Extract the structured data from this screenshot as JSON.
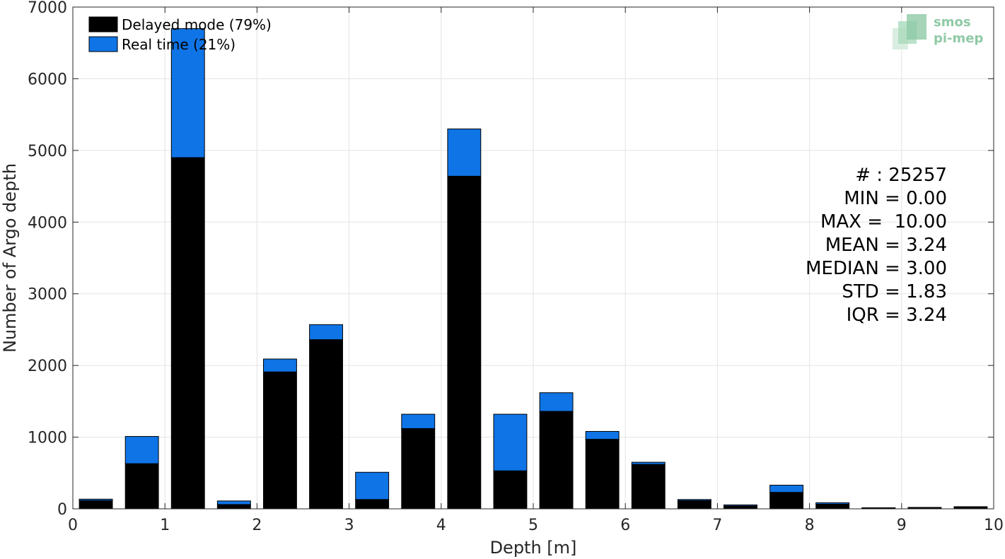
{
  "chart_data": {
    "type": "bar",
    "stacked": true,
    "bin_width": 0.5,
    "x": [
      0.25,
      0.75,
      1.25,
      1.75,
      2.25,
      2.75,
      3.25,
      3.75,
      4.25,
      4.75,
      5.25,
      5.75,
      6.25,
      6.75,
      7.25,
      7.75,
      8.25,
      8.75,
      9.25,
      9.75
    ],
    "series": [
      {
        "name": "Delayed mode (79%)",
        "color": "#000000",
        "values": [
          115,
          630,
          4900,
          60,
          1910,
          2360,
          130,
          1120,
          4640,
          530,
          1360,
          970,
          620,
          115,
          40,
          230,
          65,
          10,
          15,
          25
        ]
      },
      {
        "name": "Real time (21%)",
        "color": "#0f74e6",
        "values": [
          20,
          380,
          1800,
          50,
          180,
          210,
          380,
          200,
          660,
          790,
          260,
          110,
          30,
          15,
          15,
          100,
          20,
          5,
          5,
          5
        ]
      }
    ],
    "xlabel": "Depth [m]",
    "ylabel": "Number of Argo depth",
    "xlim": [
      0,
      10
    ],
    "ylim": [
      0,
      7000
    ],
    "xticks": [
      "0",
      "1",
      "2",
      "3",
      "4",
      "5",
      "6",
      "7",
      "8",
      "9",
      "10"
    ],
    "yticks": [
      "0",
      "1000",
      "2000",
      "3000",
      "4000",
      "5000",
      "6000",
      "7000"
    ],
    "grid": true,
    "legend_position": "top-left",
    "stats": [
      "# : 25257",
      "MIN = 0.00",
      "MAX =  10.00",
      "MEAN = 3.24",
      "MEDIAN = 3.00",
      "STD = 1.83",
      "IQR = 3.24"
    ]
  },
  "logo": {
    "line1": "smos",
    "line2": "pi-mep"
  }
}
